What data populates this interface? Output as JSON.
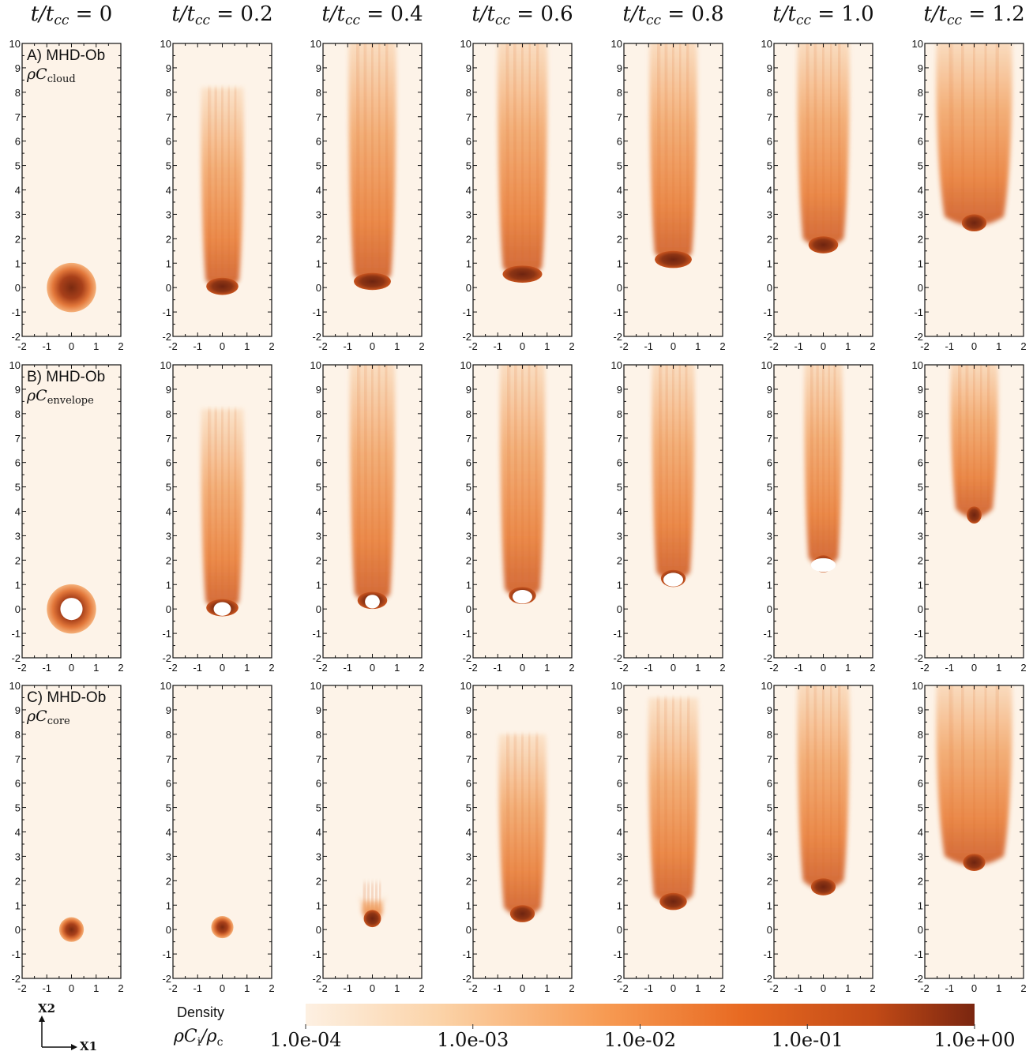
{
  "column_titles": [
    {
      "lhs": "t/t",
      "sub": "cc",
      "value": "= 0"
    },
    {
      "lhs": "t/t",
      "sub": "cc",
      "value": "= 0.2"
    },
    {
      "lhs": "t/t",
      "sub": "cc",
      "value": "= 0.4"
    },
    {
      "lhs": "t/t",
      "sub": "cc",
      "value": "= 0.6"
    },
    {
      "lhs": "t/t",
      "sub": "cc",
      "value": "= 0.8"
    },
    {
      "lhs": "t/t",
      "sub": "cc",
      "value": "= 1.0"
    },
    {
      "lhs": "t/t",
      "sub": "cc",
      "value": "= 1.2"
    }
  ],
  "rows": [
    {
      "label": "A) MHD-Ob",
      "quantity": "ρC",
      "quantity_sub": "cloud"
    },
    {
      "label": "B) MHD-Ob",
      "quantity": "ρC",
      "quantity_sub": "envelope"
    },
    {
      "label": "C) MHD-Ob",
      "quantity": "ρC",
      "quantity_sub": "core"
    }
  ],
  "axes": {
    "x_ticks": [
      "-2",
      "-1",
      "0",
      "1",
      "2"
    ],
    "y_ticks": [
      "-2",
      "-1",
      "0",
      "1",
      "2",
      "3",
      "4",
      "5",
      "6",
      "7",
      "8",
      "9",
      "10"
    ],
    "xlim": [
      -2,
      2
    ],
    "ylim": [
      -2,
      10
    ]
  },
  "orientation": {
    "y_axis": "X2",
    "x_axis": "X1"
  },
  "colorbar": {
    "title": "Density",
    "quantity": "ρC",
    "quantity_sub": "i",
    "quantity_rest": "/ρ",
    "quantity_rest_sub": "c",
    "ticks": [
      "1.0e-04",
      "1.0e-03",
      "1.0e-02",
      "1.0e-01",
      "1.0e+00"
    ],
    "colors": [
      "#fdf0e2",
      "#fbd3a8",
      "#f79a52",
      "#e86a22",
      "#c24a16",
      "#7a2610"
    ],
    "background": "#fdf3e8"
  },
  "panels": [
    [
      {
        "kind": "disk",
        "y": 0.0,
        "r": 1.0
      },
      {
        "kind": "tail",
        "front": -0.3,
        "top": 8.2,
        "width": 0.9,
        "head": 0.65,
        "cavity": 0
      },
      {
        "kind": "tail",
        "front": -0.1,
        "top": 10.5,
        "width": 1.0,
        "head": 0.75,
        "cavity": 0
      },
      {
        "kind": "tail",
        "front": 0.2,
        "top": 10.5,
        "width": 1.05,
        "head": 0.8,
        "cavity": 0
      },
      {
        "kind": "tail",
        "front": 0.8,
        "top": 10.5,
        "width": 1.0,
        "head": 0.75,
        "cavity": 0
      },
      {
        "kind": "tail",
        "front": 1.4,
        "top": 10.5,
        "width": 1.1,
        "head": 0.6,
        "cavity": 0
      },
      {
        "kind": "tail",
        "front": 2.3,
        "top": 10.5,
        "width": 1.6,
        "head": 0.5,
        "cavity": 0
      }
    ],
    [
      {
        "kind": "ring",
        "y": 0.0,
        "r": 1.0,
        "hole": 0.45
      },
      {
        "kind": "tail",
        "front": -0.3,
        "top": 8.2,
        "width": 0.9,
        "head": 0.65,
        "cavity": 0.35
      },
      {
        "kind": "tail",
        "front": 0.0,
        "top": 10.5,
        "width": 0.95,
        "head": 0.6,
        "cavity": 0.3
      },
      {
        "kind": "tail",
        "front": 0.2,
        "top": 10.5,
        "width": 0.95,
        "head": 0.55,
        "cavity": 0.4
      },
      {
        "kind": "tail",
        "front": 0.9,
        "top": 10.5,
        "width": 0.9,
        "head": 0.5,
        "cavity": 0.4
      },
      {
        "kind": "tail",
        "front": 1.5,
        "top": 10.5,
        "width": 0.8,
        "head": 0.4,
        "cavity": 0.5
      },
      {
        "kind": "tail",
        "front": 3.5,
        "top": 10.5,
        "width": 1.0,
        "head": 0.3,
        "cavity": 0
      }
    ],
    [
      {
        "kind": "disk",
        "y": 0.0,
        "r": 0.5
      },
      {
        "kind": "disk",
        "y": 0.1,
        "r": 0.45
      },
      {
        "kind": "tail",
        "front": 0.1,
        "top": 1.2,
        "width": 0.55,
        "head": 0.35,
        "cavity": 0
      },
      {
        "kind": "tail",
        "front": 0.3,
        "top": 8.0,
        "width": 1.0,
        "head": 0.5,
        "cavity": 0
      },
      {
        "kind": "tail",
        "front": 0.8,
        "top": 9.5,
        "width": 1.05,
        "head": 0.55,
        "cavity": 0
      },
      {
        "kind": "tail",
        "front": 1.4,
        "top": 10.5,
        "width": 1.1,
        "head": 0.5,
        "cavity": 0
      },
      {
        "kind": "tail",
        "front": 2.4,
        "top": 10.5,
        "width": 1.6,
        "head": 0.45,
        "cavity": 0
      }
    ]
  ]
}
